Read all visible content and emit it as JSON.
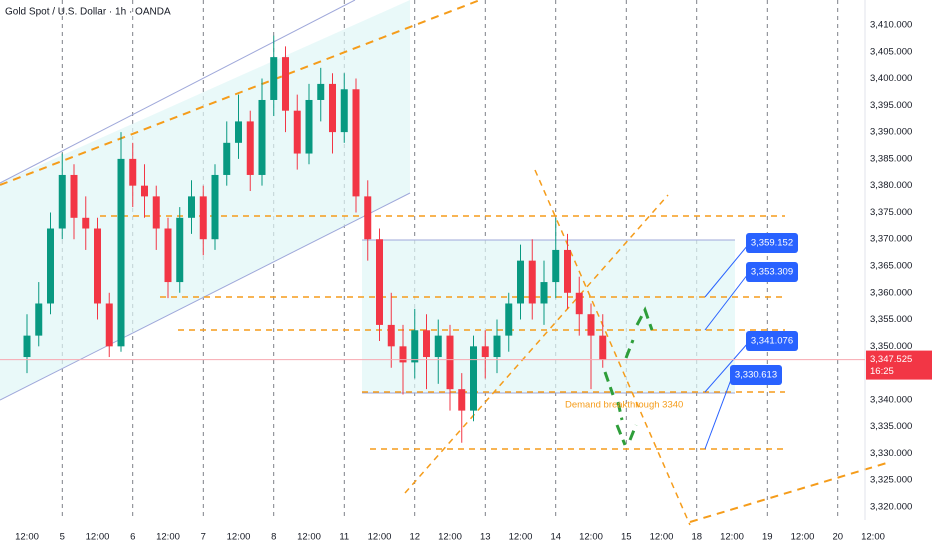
{
  "chart_data": {
    "type": "candlestick",
    "title": "Gold Spot / U.S. Dollar · 1h · OANDA",
    "up_color": "#089981",
    "down_color": "#f23645",
    "grid": true,
    "ylim": [
      3320,
      3410
    ],
    "yticks": [
      {
        "value": 3320,
        "label": "3,320.000"
      },
      {
        "value": 3325,
        "label": "3,325.000"
      },
      {
        "value": 3330,
        "label": "3,330.000"
      },
      {
        "value": 3335,
        "label": "3,335.000"
      },
      {
        "value": 3340,
        "label": "3,340.000"
      },
      {
        "value": 3345,
        "label": "3,345.000"
      },
      {
        "value": 3350,
        "label": "3,350.000"
      },
      {
        "value": 3355,
        "label": "3,355.000"
      },
      {
        "value": 3360,
        "label": "3,360.000"
      },
      {
        "value": 3365,
        "label": "3,365.000"
      },
      {
        "value": 3370,
        "label": "3,370.000"
      },
      {
        "value": 3375,
        "label": "3,375.000"
      },
      {
        "value": 3380,
        "label": "3,380.000"
      },
      {
        "value": 3385,
        "label": "3,385.000"
      },
      {
        "value": 3390,
        "label": "3,390.000"
      },
      {
        "value": 3395,
        "label": "3,395.000"
      },
      {
        "value": 3400,
        "label": "3,400.000"
      },
      {
        "value": 3405,
        "label": "3,405.000"
      },
      {
        "value": 3410,
        "label": "3,410.000"
      }
    ],
    "xlim": [
      0,
      290
    ],
    "xticks": [
      {
        "value": 0,
        "label": "12:00"
      },
      {
        "value": 12,
        "label": "5"
      },
      {
        "value": 24,
        "label": "12:00"
      },
      {
        "value": 36,
        "label": "6"
      },
      {
        "value": 48,
        "label": "12:00"
      },
      {
        "value": 60,
        "label": "7"
      },
      {
        "value": 72,
        "label": "12:00"
      },
      {
        "value": 84,
        "label": "8"
      },
      {
        "value": 96,
        "label": "12:00"
      },
      {
        "value": 108,
        "label": "11"
      },
      {
        "value": 120,
        "label": "12:00"
      },
      {
        "value": 132,
        "label": "12"
      },
      {
        "value": 144,
        "label": "12:00"
      },
      {
        "value": 156,
        "label": "13"
      },
      {
        "value": 168,
        "label": "12:00"
      },
      {
        "value": 180,
        "label": "14"
      },
      {
        "value": 192,
        "label": "12:00"
      },
      {
        "value": 204,
        "label": "15"
      },
      {
        "value": 216,
        "label": "12:00"
      },
      {
        "value": 228,
        "label": "18"
      },
      {
        "value": 240,
        "label": "12:00"
      },
      {
        "value": 252,
        "label": "19"
      },
      {
        "value": 264,
        "label": "12:00"
      },
      {
        "value": 276,
        "label": "20"
      },
      {
        "value": 288,
        "label": "12:00"
      }
    ],
    "x": [
      0,
      4,
      8,
      12,
      16,
      20,
      24,
      28,
      32,
      36,
      40,
      44,
      48,
      52,
      56,
      60,
      64,
      68,
      72,
      76,
      80,
      84,
      88,
      92,
      96,
      100,
      104,
      108,
      112,
      116,
      120,
      124,
      128,
      132,
      136,
      140,
      144,
      148,
      152,
      156,
      160,
      164,
      168,
      172,
      176,
      180,
      184,
      188,
      192,
      196
    ],
    "open": [
      3348,
      3352,
      3358,
      3372,
      3382,
      3374,
      3372,
      3358,
      3350,
      3385,
      3380,
      3378,
      3372,
      3362,
      3374,
      3378,
      3370,
      3382,
      3388,
      3392,
      3382,
      3396,
      3404,
      3394,
      3386,
      3396,
      3399,
      3390,
      3398,
      3378,
      3370,
      3354,
      3350,
      3347,
      3353,
      3348,
      3352,
      3342,
      3338,
      3350,
      3348,
      3352,
      3358,
      3366,
      3358,
      3362,
      3368,
      3360,
      3356,
      3352
    ],
    "high": [
      3356,
      3362,
      3375,
      3386,
      3384,
      3378,
      3374,
      3360,
      3390,
      3388,
      3384,
      3380,
      3374,
      3376,
      3381,
      3380,
      3384,
      3392,
      3397,
      3394,
      3400,
      3408,
      3406,
      3397,
      3399,
      3402,
      3401,
      3401,
      3400,
      3381,
      3372,
      3360,
      3354,
      3357,
      3356,
      3355,
      3354,
      3345,
      3352,
      3353,
      3355,
      3360,
      3369,
      3370,
      3366,
      3374,
      3371,
      3363,
      3358,
      3356
    ],
    "low": [
      3345,
      3350,
      3356,
      3370,
      3370,
      3368,
      3355,
      3348,
      3349,
      3376,
      3374,
      3368,
      3359,
      3360,
      3371,
      3367,
      3368,
      3380,
      3385,
      3379,
      3380,
      3393,
      3390,
      3383,
      3384,
      3392,
      3386,
      3388,
      3375,
      3366,
      3351,
      3346,
      3341,
      3344,
      3342,
      3343,
      3338,
      3332,
      3336,
      3344,
      3345,
      3349,
      3355,
      3355,
      3354,
      3359,
      3357,
      3352,
      3342,
      3346
    ],
    "close": [
      3352,
      3358,
      3372,
      3382,
      3374,
      3372,
      3358,
      3350,
      3385,
      3380,
      3378,
      3372,
      3362,
      3374,
      3378,
      3370,
      3382,
      3388,
      3392,
      3382,
      3396,
      3404,
      3394,
      3386,
      3396,
      3399,
      3390,
      3398,
      3378,
      3370,
      3354,
      3350,
      3347,
      3353,
      3348,
      3352,
      3342,
      3338,
      3350,
      3348,
      3352,
      3358,
      3366,
      3358,
      3362,
      3368,
      3360,
      3356,
      3352,
      3347.525
    ],
    "last_price": {
      "value": 3347.525,
      "label": "3,347.525"
    },
    "countdown": "16:25",
    "annotations": [
      {
        "value": 3359.152,
        "label": "3,359.152"
      },
      {
        "value": 3353.309,
        "label": "3,353.309"
      },
      {
        "value": 3341.076,
        "label": "3,341.076"
      },
      {
        "value": 3330.613,
        "label": "3,330.613"
      }
    ],
    "note": "Demand breakthrough 3340"
  }
}
